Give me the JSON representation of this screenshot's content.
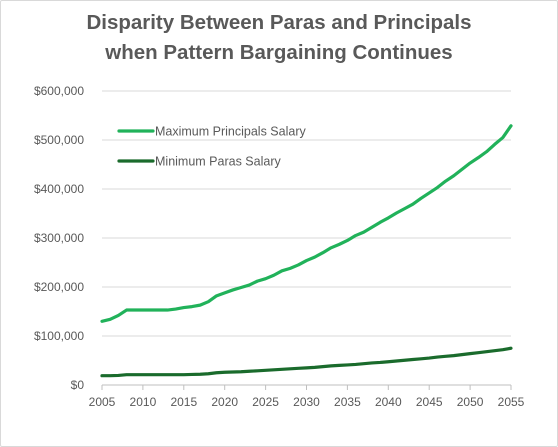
{
  "chart_data": {
    "type": "line",
    "title": [
      "Disparity Between Paras and Principals",
      "when Pattern Bargaining Continues"
    ],
    "xlabel": "",
    "ylabel": "",
    "xlim": [
      2005,
      2055
    ],
    "ylim": [
      0,
      600000
    ],
    "x_ticks": [
      2005,
      2010,
      2015,
      2020,
      2025,
      2030,
      2035,
      2040,
      2045,
      2050,
      2055
    ],
    "y_ticks": [
      0,
      100000,
      200000,
      300000,
      400000,
      500000,
      600000
    ],
    "y_tick_labels": [
      "$0",
      "$100,000",
      "$200,000",
      "$300,000",
      "$400,000",
      "$500,000",
      "$600,000"
    ],
    "grid": "horizontal",
    "legend_position": "upper-left",
    "series": [
      {
        "name": "Maximum Principals Salary",
        "color": "#21b25a",
        "points": [
          [
            2005,
            130000
          ],
          [
            2006,
            134000
          ],
          [
            2007,
            142000
          ],
          [
            2008,
            153000
          ],
          [
            2009,
            153000
          ],
          [
            2010,
            153000
          ],
          [
            2011,
            153000
          ],
          [
            2012,
            153000
          ],
          [
            2013,
            153000
          ],
          [
            2014,
            155000
          ],
          [
            2015,
            158000
          ],
          [
            2016,
            160000
          ],
          [
            2017,
            163000
          ],
          [
            2018,
            170000
          ],
          [
            2019,
            182000
          ],
          [
            2020,
            188000
          ],
          [
            2021,
            194000
          ],
          [
            2022,
            199000
          ],
          [
            2023,
            204000
          ],
          [
            2024,
            212000
          ],
          [
            2025,
            217000
          ],
          [
            2026,
            224000
          ],
          [
            2027,
            233000
          ],
          [
            2028,
            238000
          ],
          [
            2029,
            245000
          ],
          [
            2030,
            254000
          ],
          [
            2031,
            261000
          ],
          [
            2032,
            270000
          ],
          [
            2033,
            280000
          ],
          [
            2034,
            287000
          ],
          [
            2035,
            295000
          ],
          [
            2036,
            305000
          ],
          [
            2037,
            312000
          ],
          [
            2038,
            322000
          ],
          [
            2039,
            332000
          ],
          [
            2040,
            341000
          ],
          [
            2041,
            351000
          ],
          [
            2042,
            360000
          ],
          [
            2043,
            369000
          ],
          [
            2044,
            381000
          ],
          [
            2045,
            392000
          ],
          [
            2046,
            403000
          ],
          [
            2047,
            416000
          ],
          [
            2048,
            427000
          ],
          [
            2049,
            440000
          ],
          [
            2050,
            453000
          ],
          [
            2051,
            464000
          ],
          [
            2052,
            476000
          ],
          [
            2053,
            491000
          ],
          [
            2054,
            505000
          ],
          [
            2055,
            529000
          ]
        ]
      },
      {
        "name": "Minimum Paras Salary",
        "color": "#1a6b2c",
        "points": [
          [
            2005,
            19000
          ],
          [
            2006,
            19000
          ],
          [
            2007,
            19500
          ],
          [
            2008,
            21000
          ],
          [
            2009,
            21000
          ],
          [
            2010,
            21000
          ],
          [
            2011,
            21000
          ],
          [
            2012,
            21000
          ],
          [
            2013,
            21000
          ],
          [
            2014,
            21000
          ],
          [
            2015,
            21000
          ],
          [
            2016,
            21500
          ],
          [
            2017,
            22000
          ],
          [
            2018,
            23000
          ],
          [
            2019,
            25000
          ],
          [
            2020,
            26000
          ],
          [
            2021,
            26500
          ],
          [
            2022,
            27000
          ],
          [
            2023,
            28000
          ],
          [
            2024,
            29000
          ],
          [
            2025,
            30000
          ],
          [
            2026,
            31000
          ],
          [
            2027,
            32000
          ],
          [
            2028,
            33000
          ],
          [
            2029,
            34000
          ],
          [
            2030,
            35000
          ],
          [
            2031,
            36000
          ],
          [
            2032,
            37500
          ],
          [
            2033,
            39000
          ],
          [
            2034,
            40000
          ],
          [
            2035,
            41000
          ],
          [
            2036,
            42000
          ],
          [
            2037,
            43500
          ],
          [
            2038,
            45000
          ],
          [
            2039,
            46000
          ],
          [
            2040,
            47500
          ],
          [
            2041,
            49000
          ],
          [
            2042,
            50500
          ],
          [
            2043,
            52000
          ],
          [
            2044,
            53500
          ],
          [
            2045,
            55000
          ],
          [
            2046,
            57000
          ],
          [
            2047,
            58500
          ],
          [
            2048,
            60000
          ],
          [
            2049,
            62000
          ],
          [
            2050,
            64000
          ],
          [
            2051,
            66000
          ],
          [
            2052,
            68000
          ],
          [
            2053,
            70000
          ],
          [
            2054,
            72000
          ],
          [
            2055,
            75000
          ]
        ]
      }
    ]
  }
}
